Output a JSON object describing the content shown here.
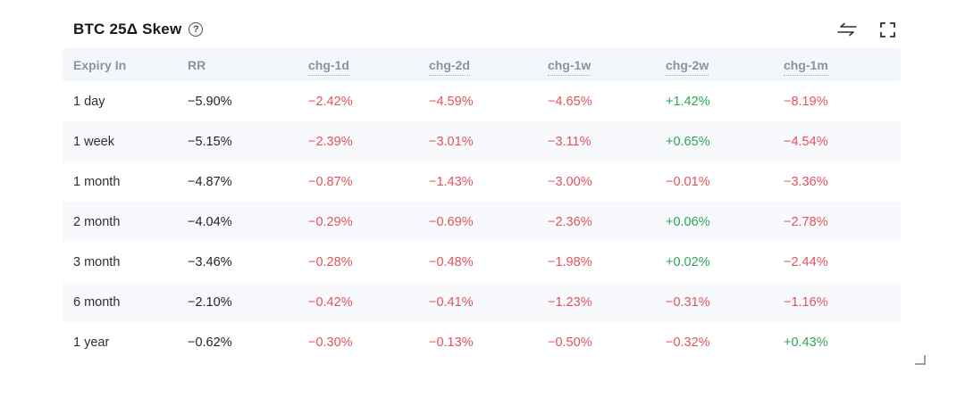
{
  "widget": {
    "title": "BTC 25Δ Skew",
    "help_icon_glyph": "?"
  },
  "colors": {
    "negative": "#e2525e",
    "positive": "#2ca45a",
    "header_bg": "#f3f6fa",
    "stripe_bg": "#f7f9fc"
  },
  "chart_data": {
    "type": "table",
    "title": "BTC 25Δ Skew",
    "columns": [
      {
        "label": "Expiry In",
        "dotted": false
      },
      {
        "label": "RR",
        "dotted": false
      },
      {
        "label": "chg-1d",
        "dotted": true
      },
      {
        "label": "chg-2d",
        "dotted": true
      },
      {
        "label": "chg-1w",
        "dotted": true
      },
      {
        "label": "chg-2w",
        "dotted": true
      },
      {
        "label": "chg-1m",
        "dotted": true
      }
    ],
    "rows": [
      {
        "expiry": "1 day",
        "rr": "−5.90%",
        "changes": [
          "−2.42%",
          "−4.59%",
          "−4.65%",
          "+1.42%",
          "−8.19%"
        ]
      },
      {
        "expiry": "1 week",
        "rr": "−5.15%",
        "changes": [
          "−2.39%",
          "−3.01%",
          "−3.11%",
          "+0.65%",
          "−4.54%"
        ]
      },
      {
        "expiry": "1 month",
        "rr": "−4.87%",
        "changes": [
          "−0.87%",
          "−1.43%",
          "−3.00%",
          "−0.01%",
          "−3.36%"
        ]
      },
      {
        "expiry": "2 month",
        "rr": "−4.04%",
        "changes": [
          "−0.29%",
          "−0.69%",
          "−2.36%",
          "+0.06%",
          "−2.78%"
        ]
      },
      {
        "expiry": "3 month",
        "rr": "−3.46%",
        "changes": [
          "−0.28%",
          "−0.48%",
          "−1.98%",
          "+0.02%",
          "−2.44%"
        ]
      },
      {
        "expiry": "6 month",
        "rr": "−2.10%",
        "changes": [
          "−0.42%",
          "−0.41%",
          "−1.23%",
          "−0.31%",
          "−1.16%"
        ]
      },
      {
        "expiry": "1 year",
        "rr": "−0.62%",
        "changes": [
          "−0.30%",
          "−0.13%",
          "−0.50%",
          "−0.32%",
          "+0.43%"
        ]
      }
    ]
  }
}
